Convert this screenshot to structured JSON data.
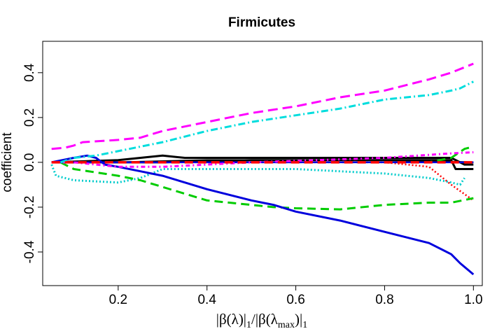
{
  "chart_data": {
    "type": "line",
    "title": "Firmicutes",
    "ylabel": "coefficient",
    "xlabel_parts": [
      "|β(λ)|",
      "1",
      "/|β(λ",
      "max",
      ")|",
      "1"
    ],
    "xlim": [
      0.03,
      1.02
    ],
    "ylim": [
      -0.55,
      0.54
    ],
    "xticks": [
      0.2,
      0.4,
      0.6,
      0.8,
      1.0
    ],
    "xtick_labels": [
      "0.2",
      "0.4",
      "0.6",
      "0.8",
      "1.0"
    ],
    "yticks": [
      -0.4,
      -0.2,
      0.0,
      0.2,
      0.4
    ],
    "ytick_labels": [
      "-0.4",
      "-0.2",
      "0.0",
      "0.2",
      "0.4"
    ],
    "grid": false,
    "legend": "none",
    "series": [
      {
        "color": "#00cccc",
        "dash": "2,3",
        "width": 3,
        "points": [
          [
            0.05,
            -0.01
          ],
          [
            0.06,
            -0.06
          ],
          [
            0.1,
            -0.08
          ],
          [
            0.2,
            -0.09
          ],
          [
            0.25,
            -0.07
          ],
          [
            0.3,
            -0.03
          ],
          [
            0.4,
            -0.03
          ],
          [
            0.6,
            -0.03
          ],
          [
            0.8,
            -0.05
          ],
          [
            0.9,
            -0.07
          ],
          [
            0.95,
            -0.09
          ],
          [
            0.97,
            -0.1
          ],
          [
            0.98,
            -0.07
          ]
        ]
      },
      {
        "color": "#ff0000",
        "dash": "2,3",
        "width": 2.5,
        "points": [
          [
            0.05,
            0
          ],
          [
            0.8,
            0
          ],
          [
            0.9,
            -0.02
          ],
          [
            0.95,
            -0.1
          ],
          [
            1.0,
            -0.17
          ]
        ]
      },
      {
        "color": "#000000",
        "dash": "",
        "width": 3,
        "points": [
          [
            0.05,
            0
          ],
          [
            0.2,
            0.01
          ],
          [
            0.3,
            0.03
          ],
          [
            0.35,
            0.02
          ],
          [
            0.5,
            0.02
          ],
          [
            0.6,
            0.02
          ],
          [
            0.8,
            0.02
          ],
          [
            0.95,
            0.02
          ],
          [
            0.98,
            -0.01
          ],
          [
            1.0,
            -0.01
          ]
        ]
      },
      {
        "color": "#000000",
        "dash": "",
        "width": 3,
        "points": [
          [
            0.05,
            0
          ],
          [
            0.3,
            0
          ],
          [
            0.5,
            0.01
          ],
          [
            0.7,
            0.01
          ],
          [
            0.9,
            0.01
          ],
          [
            0.95,
            0.01
          ],
          [
            0.96,
            -0.03
          ],
          [
            1.0,
            -0.03
          ]
        ]
      },
      {
        "color": "#000000",
        "dash": "",
        "width": 2.5,
        "points": [
          [
            0.05,
            0
          ],
          [
            0.2,
            0
          ],
          [
            0.4,
            0.01
          ],
          [
            0.6,
            0.01
          ],
          [
            0.8,
            0.01
          ],
          [
            1.0,
            0
          ]
        ]
      },
      {
        "color": "#00cc00",
        "dash": "12,7",
        "width": 3,
        "points": [
          [
            0.07,
            0
          ],
          [
            0.1,
            -0.03
          ],
          [
            0.2,
            -0.06
          ],
          [
            0.25,
            -0.08
          ],
          [
            0.3,
            -0.11
          ],
          [
            0.4,
            -0.17
          ],
          [
            0.5,
            -0.19
          ],
          [
            0.55,
            -0.2
          ],
          [
            0.6,
            -0.205
          ],
          [
            0.7,
            -0.21
          ],
          [
            0.8,
            -0.19
          ],
          [
            0.9,
            -0.18
          ],
          [
            0.95,
            -0.18
          ],
          [
            1.0,
            -0.16
          ]
        ]
      },
      {
        "color": "#00cc00",
        "dash": "12,7",
        "width": 3,
        "points": [
          [
            0.05,
            0
          ],
          [
            0.9,
            0
          ],
          [
            0.95,
            0.02
          ],
          [
            0.98,
            0.06
          ],
          [
            1.0,
            0.07
          ]
        ]
      },
      {
        "color": "#0000dd",
        "dash": "",
        "width": 3,
        "points": [
          [
            0.05,
            0
          ],
          [
            0.1,
            0.02
          ],
          [
            0.13,
            0.03
          ],
          [
            0.15,
            0.02
          ],
          [
            0.17,
            -0.01
          ],
          [
            0.2,
            -0.02
          ],
          [
            0.25,
            -0.04
          ],
          [
            0.3,
            -0.06
          ],
          [
            0.35,
            -0.09
          ],
          [
            0.4,
            -0.12
          ],
          [
            0.5,
            -0.17
          ],
          [
            0.55,
            -0.19
          ],
          [
            0.6,
            -0.22
          ],
          [
            0.7,
            -0.26
          ],
          [
            0.8,
            -0.31
          ],
          [
            0.9,
            -0.36
          ],
          [
            0.95,
            -0.41
          ],
          [
            0.97,
            -0.45
          ],
          [
            1.0,
            -0.5
          ]
        ]
      },
      {
        "color": "#0000dd",
        "dash": "",
        "width": 2.5,
        "points": [
          [
            0.05,
            0
          ],
          [
            0.5,
            0
          ],
          [
            0.9,
            0
          ],
          [
            1.0,
            0
          ]
        ]
      },
      {
        "color": "#ff00ff",
        "dash": "6,4,2,4",
        "width": 3,
        "points": [
          [
            0.05,
            0
          ],
          [
            0.1,
            0
          ],
          [
            0.2,
            -0.02
          ],
          [
            0.3,
            -0.02
          ],
          [
            0.5,
            0
          ],
          [
            0.8,
            0.02
          ],
          [
            0.95,
            0.04
          ],
          [
            1.0,
            0.045
          ]
        ]
      },
      {
        "color": "#00dddd",
        "dash": "10,4,2,4",
        "width": 3,
        "points": [
          [
            0.07,
            0
          ],
          [
            0.1,
            0.02
          ],
          [
            0.15,
            0.03
          ],
          [
            0.2,
            0.05
          ],
          [
            0.3,
            0.09
          ],
          [
            0.4,
            0.14
          ],
          [
            0.5,
            0.18
          ],
          [
            0.6,
            0.21
          ],
          [
            0.7,
            0.24
          ],
          [
            0.8,
            0.28
          ],
          [
            0.9,
            0.3
          ],
          [
            0.95,
            0.32
          ],
          [
            0.97,
            0.33
          ],
          [
            1.0,
            0.36
          ]
        ]
      },
      {
        "color": "#ff00ff",
        "dash": "14,7",
        "width": 3,
        "points": [
          [
            0.05,
            0.06
          ],
          [
            0.08,
            0.065
          ],
          [
            0.1,
            0.075
          ],
          [
            0.12,
            0.09
          ],
          [
            0.2,
            0.1
          ],
          [
            0.25,
            0.11
          ],
          [
            0.3,
            0.14
          ],
          [
            0.4,
            0.18
          ],
          [
            0.5,
            0.22
          ],
          [
            0.6,
            0.25
          ],
          [
            0.7,
            0.29
          ],
          [
            0.8,
            0.32
          ],
          [
            0.9,
            0.37
          ],
          [
            0.95,
            0.4
          ],
          [
            1.0,
            0.44
          ]
        ]
      },
      {
        "color": "#ff0000",
        "dash": "12,7",
        "width": 3.5,
        "points": [
          [
            0.05,
            0
          ],
          [
            0.3,
            0
          ],
          [
            0.5,
            0
          ],
          [
            0.7,
            0
          ],
          [
            1.0,
            0
          ]
        ]
      }
    ]
  }
}
